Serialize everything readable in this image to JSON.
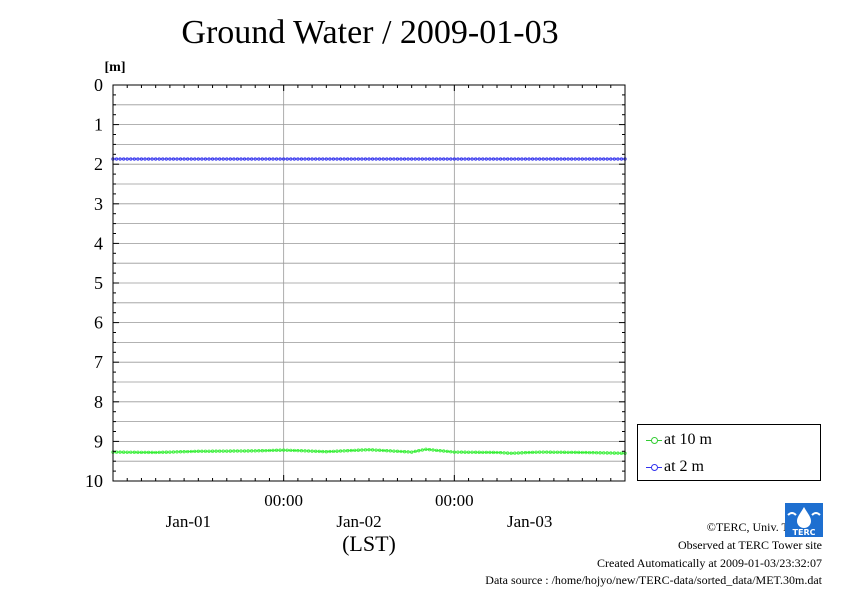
{
  "title": "Ground Water / 2009-01-03",
  "chart_data": {
    "type": "line",
    "ylabel": "[m]",
    "ylim": [
      0,
      10
    ],
    "y_inverted": true,
    "y_ticks": [
      "0",
      "1",
      "2",
      "3",
      "4",
      "5",
      "6",
      "7",
      "8",
      "9",
      "10"
    ],
    "x_tick_labels": [
      "00:00",
      "00:00"
    ],
    "x_date_labels": [
      "Jan-01",
      "Jan-02",
      "Jan-03"
    ],
    "xlabel": "(LST)",
    "xlim_hours": [
      0,
      72
    ],
    "grid": true,
    "legend_position": "bottom-right, outside plot",
    "series": [
      {
        "name": "at 10 m",
        "color": "#33ee33",
        "x_hours": [
          0,
          6,
          12,
          20,
          24,
          30,
          36,
          42,
          44,
          48,
          54,
          56,
          60,
          66,
          72
        ],
        "values": [
          9.27,
          9.28,
          9.25,
          9.24,
          9.22,
          9.26,
          9.21,
          9.27,
          9.2,
          9.27,
          9.28,
          9.3,
          9.27,
          9.28,
          9.3
        ]
      },
      {
        "name": "at 2 m",
        "color": "#3333ee",
        "x_hours": [
          0,
          12,
          24,
          36,
          48,
          60,
          72
        ],
        "values": [
          1.87,
          1.87,
          1.87,
          1.87,
          1.87,
          1.87,
          1.87
        ]
      }
    ]
  },
  "credits": {
    "copyright": "©TERC, Univ. Tsukuba",
    "observed": "Observed at TERC Tower site",
    "created": "Created Automatically at 2009-01-03/23:32:07",
    "source": "Data source : /home/hojyo/new/TERC-data/sorted_data/MET.30m.dat",
    "logo_text": "TERC"
  }
}
